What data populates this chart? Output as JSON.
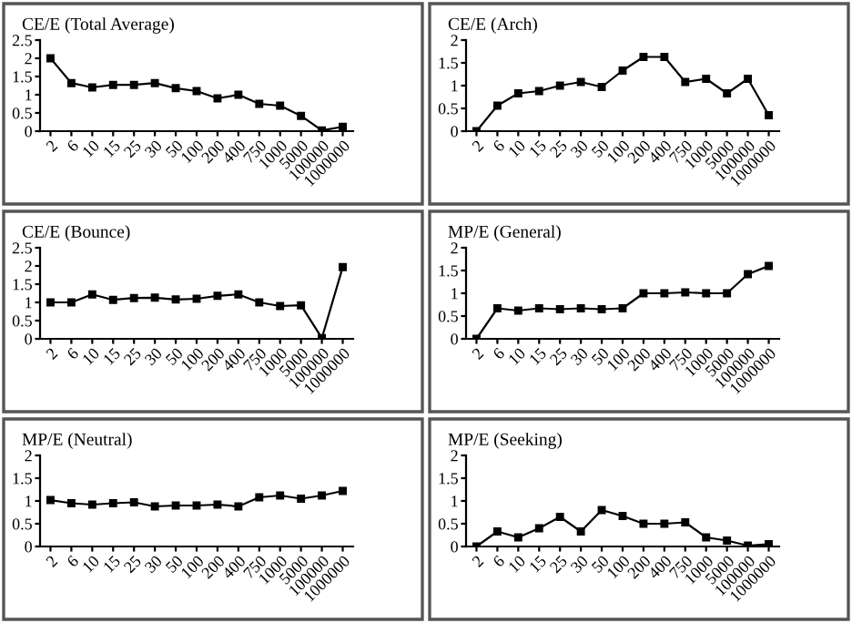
{
  "chart_data": [
    {
      "type": "line",
      "title": "CE/E (Total Average)",
      "categories": [
        "2",
        "6",
        "10",
        "15",
        "25",
        "30",
        "50",
        "100",
        "200",
        "400",
        "750",
        "1000",
        "5000",
        "100000",
        "1000000"
      ],
      "series": [
        {
          "color": "#000000",
          "values": [
            2.0,
            1.32,
            1.2,
            1.27,
            1.27,
            1.32,
            1.18,
            1.1,
            0.9,
            1.0,
            0.75,
            0.7,
            0.42,
            0.02,
            0.12
          ]
        }
      ],
      "ylim": [
        0,
        2.5
      ],
      "yticks": [
        0,
        0.5,
        1,
        1.5,
        2,
        2.5
      ],
      "marker": "square",
      "line_style": "solid",
      "grid": false,
      "legend": false
    },
    {
      "type": "line",
      "title": "CE/E (Arch)",
      "categories": [
        "2",
        "6",
        "10",
        "15",
        "25",
        "30",
        "50",
        "100",
        "200",
        "400",
        "750",
        "1000",
        "5000",
        "100000",
        "1000000"
      ],
      "series": [
        {
          "color": "#000000",
          "values": [
            0,
            0.56,
            0.83,
            0.88,
            1.0,
            1.08,
            0.97,
            1.33,
            1.63,
            1.63,
            1.08,
            1.15,
            0.83,
            1.15,
            0.35
          ]
        }
      ],
      "ylim": [
        0,
        2
      ],
      "yticks": [
        0,
        0.5,
        1,
        1.5,
        2
      ],
      "marker": "square",
      "line_style": "solid",
      "grid": false,
      "legend": false
    },
    {
      "type": "line",
      "title": "CE/E (Bounce)",
      "categories": [
        "2",
        "6",
        "10",
        "15",
        "25",
        "30",
        "50",
        "100",
        "200",
        "400",
        "750",
        "1000",
        "5000",
        "100000",
        "1000000"
      ],
      "series": [
        {
          "color": "#000000",
          "values": [
            1.0,
            1.0,
            1.22,
            1.07,
            1.12,
            1.13,
            1.08,
            1.1,
            1.18,
            1.22,
            1.0,
            0.9,
            0.92,
            0.02,
            1.97
          ]
        }
      ],
      "ylim": [
        0,
        2.5
      ],
      "yticks": [
        0,
        0.5,
        1,
        1.5,
        2,
        2.5
      ],
      "marker": "square",
      "line_style": "solid",
      "grid": false,
      "legend": false
    },
    {
      "type": "line",
      "title": "MP/E (General)",
      "categories": [
        "2",
        "6",
        "10",
        "15",
        "25",
        "30",
        "50",
        "100",
        "200",
        "400",
        "750",
        "1000",
        "5000",
        "100000",
        "1000000"
      ],
      "series": [
        {
          "color": "#000000",
          "values": [
            0,
            0.67,
            0.62,
            0.67,
            0.65,
            0.67,
            0.65,
            0.67,
            1.0,
            1.0,
            1.02,
            1.0,
            1.0,
            1.42,
            1.6
          ]
        }
      ],
      "ylim": [
        0,
        2
      ],
      "yticks": [
        0,
        0.5,
        1,
        1.5,
        2
      ],
      "marker": "square",
      "line_style": "solid",
      "grid": false,
      "legend": false
    },
    {
      "type": "line",
      "title": "MP/E (Neutral)",
      "categories": [
        "2",
        "6",
        "10",
        "15",
        "25",
        "30",
        "50",
        "100",
        "200",
        "400",
        "750",
        "1000",
        "5000",
        "100000",
        "1000000"
      ],
      "series": [
        {
          "color": "#000000",
          "values": [
            1.02,
            0.95,
            0.92,
            0.95,
            0.97,
            0.88,
            0.9,
            0.9,
            0.92,
            0.88,
            1.08,
            1.12,
            1.05,
            1.12,
            1.22
          ]
        }
      ],
      "ylim": [
        0,
        2
      ],
      "yticks": [
        0,
        0.5,
        1,
        1.5,
        2
      ],
      "marker": "square",
      "line_style": "solid",
      "grid": false,
      "legend": false
    },
    {
      "type": "line",
      "title": "MP/E (Seeking)",
      "categories": [
        "2",
        "6",
        "10",
        "15",
        "25",
        "30",
        "50",
        "100",
        "200",
        "400",
        "750",
        "1000",
        "5000",
        "100000",
        "1000000"
      ],
      "series": [
        {
          "color": "#000000",
          "values": [
            0,
            0.33,
            0.2,
            0.4,
            0.65,
            0.33,
            0.8,
            0.67,
            0.5,
            0.5,
            0.53,
            0.2,
            0.13,
            0.02,
            0.05
          ]
        }
      ],
      "ylim": [
        0,
        2
      ],
      "yticks": [
        0,
        0.5,
        1,
        1.5,
        2
      ],
      "marker": "square",
      "line_style": "solid",
      "grid": false,
      "legend": false
    }
  ]
}
